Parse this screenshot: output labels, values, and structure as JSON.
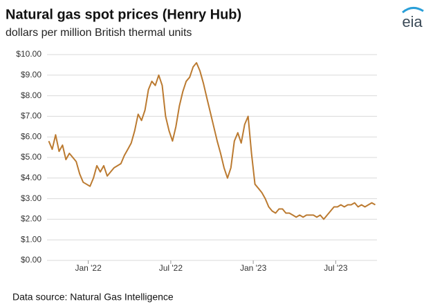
{
  "chart_data": {
    "type": "line",
    "title": "Natural gas spot prices (Henry Hub)",
    "subtitle": "dollars per million British thermal units",
    "source": "Data source: Natural Gas Intelligence",
    "logo": "eia",
    "x": [
      "2021-10",
      "2021-10",
      "2021-10",
      "2021-10",
      "2021-11",
      "2021-11",
      "2021-11",
      "2021-11",
      "2021-12",
      "2021-12",
      "2021-12",
      "2021-12",
      "2022-01",
      "2022-01",
      "2022-01",
      "2022-01",
      "2022-02",
      "2022-02",
      "2022-02",
      "2022-02",
      "2022-03",
      "2022-03",
      "2022-03",
      "2022-03",
      "2022-04",
      "2022-04",
      "2022-04",
      "2022-04",
      "2022-05",
      "2022-05",
      "2022-05",
      "2022-05",
      "2022-06",
      "2022-06",
      "2022-06",
      "2022-06",
      "2022-07",
      "2022-07",
      "2022-07",
      "2022-07",
      "2022-08",
      "2022-08",
      "2022-08",
      "2022-08",
      "2022-09",
      "2022-09",
      "2022-09",
      "2022-09",
      "2022-10",
      "2022-10",
      "2022-10",
      "2022-10",
      "2022-11",
      "2022-11",
      "2022-11",
      "2022-11",
      "2022-12",
      "2022-12",
      "2022-12",
      "2022-12",
      "2023-01",
      "2023-01",
      "2023-01",
      "2023-01",
      "2023-02",
      "2023-02",
      "2023-02",
      "2023-02",
      "2023-03",
      "2023-03",
      "2023-03",
      "2023-03",
      "2023-04",
      "2023-04",
      "2023-04",
      "2023-04",
      "2023-05",
      "2023-05",
      "2023-05",
      "2023-05",
      "2023-06",
      "2023-06",
      "2023-06",
      "2023-06",
      "2023-07",
      "2023-07",
      "2023-07",
      "2023-07",
      "2023-08",
      "2023-08",
      "2023-08",
      "2023-08",
      "2023-09",
      "2023-09",
      "2023-09",
      "2023-09"
    ],
    "series": [
      {
        "name": "Henry Hub",
        "color": "#bb7a30",
        "values": [
          5.8,
          5.4,
          6.1,
          5.3,
          5.6,
          4.9,
          5.2,
          5.0,
          4.8,
          4.2,
          3.8,
          3.7,
          3.6,
          4.0,
          4.6,
          4.3,
          4.6,
          4.1,
          4.3,
          4.5,
          4.6,
          4.7,
          5.1,
          5.4,
          5.7,
          6.3,
          7.1,
          6.8,
          7.3,
          8.3,
          8.7,
          8.5,
          9.0,
          8.5,
          7.0,
          6.3,
          5.8,
          6.5,
          7.5,
          8.2,
          8.7,
          8.9,
          9.4,
          9.6,
          9.2,
          8.6,
          7.9,
          7.2,
          6.5,
          5.8,
          5.2,
          4.5,
          4.0,
          4.5,
          5.8,
          6.2,
          5.7,
          6.6,
          7.0,
          5.2,
          3.7,
          3.5,
          3.3,
          3.0,
          2.6,
          2.4,
          2.3,
          2.5,
          2.5,
          2.3,
          2.3,
          2.2,
          2.1,
          2.2,
          2.1,
          2.2,
          2.2,
          2.2,
          2.1,
          2.2,
          2.0,
          2.2,
          2.4,
          2.6,
          2.6,
          2.7,
          2.6,
          2.7,
          2.7,
          2.8,
          2.6,
          2.7,
          2.6,
          2.7,
          2.8,
          2.7
        ]
      }
    ],
    "xlim": [
      "2021-10",
      "2023-09"
    ],
    "xticks": [
      {
        "value": "2022-01",
        "label": "Jan '22"
      },
      {
        "value": "2022-07",
        "label": "Jul '22"
      },
      {
        "value": "2023-01",
        "label": "Jan '23"
      },
      {
        "value": "2023-07",
        "label": "Jul '23"
      }
    ],
    "ylim": [
      0,
      10
    ],
    "yticks": [
      {
        "value": 0,
        "label": "$0.00"
      },
      {
        "value": 1,
        "label": "$1.00"
      },
      {
        "value": 2,
        "label": "$2.00"
      },
      {
        "value": 3,
        "label": "$3.00"
      },
      {
        "value": 4,
        "label": "$4.00"
      },
      {
        "value": 5,
        "label": "$5.00"
      },
      {
        "value": 6,
        "label": "$6.00"
      },
      {
        "value": 7,
        "label": "$7.00"
      },
      {
        "value": 8,
        "label": "$8.00"
      },
      {
        "value": 9,
        "label": "$9.00"
      },
      {
        "value": 10,
        "label": "$10.00"
      }
    ],
    "grid": true
  }
}
